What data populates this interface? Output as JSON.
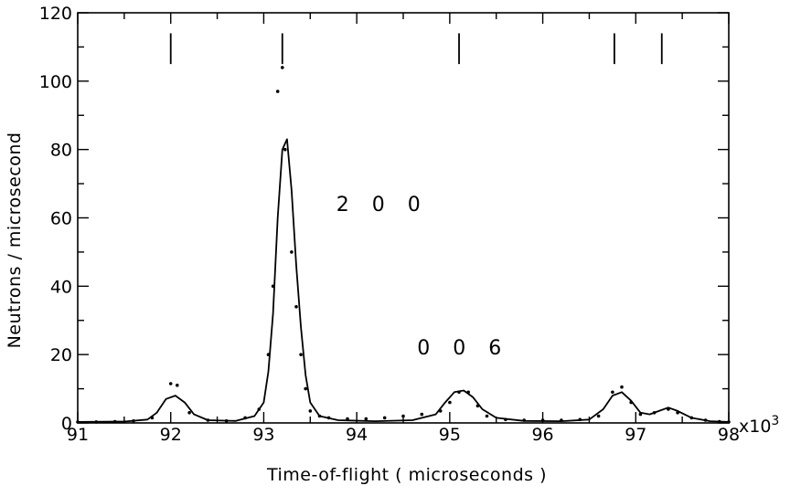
{
  "chart_data": {
    "type": "line",
    "title": "",
    "xlabel": "Time-of-flight ( microseconds )",
    "ylabel": "Neutrons / microsecond",
    "x_multiplier_label": "x10",
    "x_multiplier_exp": "3",
    "xlim": [
      91,
      98
    ],
    "ylim": [
      0,
      120
    ],
    "x_ticks": [
      91,
      92,
      93,
      94,
      95,
      96,
      97,
      98
    ],
    "y_ticks": [
      0,
      20,
      40,
      60,
      80,
      100,
      120
    ],
    "x_tick_labels": [
      "91",
      "92",
      "93",
      "94",
      "95",
      "96",
      "97",
      "98"
    ],
    "y_tick_labels": [
      "0",
      "20",
      "40",
      "60",
      "80",
      "100",
      "120"
    ],
    "grid": false,
    "legend": "none",
    "reflection_markers": [
      92.0,
      93.2,
      95.1,
      96.77,
      97.28
    ],
    "annotations": [
      {
        "text": "2 0 0",
        "x": 93.78,
        "y": 62
      },
      {
        "text": "0 0 6",
        "x": 94.65,
        "y": 20
      }
    ],
    "series": [
      {
        "style": "points",
        "x": [
          91.0,
          91.2,
          91.4,
          91.6,
          91.8,
          92.0,
          92.07,
          92.2,
          92.4,
          92.6,
          92.8,
          92.95,
          93.05,
          93.1,
          93.15,
          93.2,
          93.23,
          93.3,
          93.35,
          93.4,
          93.45,
          93.5,
          93.6,
          93.7,
          93.9,
          94.1,
          94.3,
          94.5,
          94.7,
          94.9,
          95.0,
          95.1,
          95.2,
          95.3,
          95.4,
          95.6,
          95.8,
          96.0,
          96.2,
          96.4,
          96.6,
          96.75,
          96.85,
          96.95,
          97.05,
          97.2,
          97.35,
          97.45,
          97.6,
          97.75,
          97.9,
          98.0
        ],
        "y": [
          0.3,
          0.3,
          0.4,
          0.6,
          1.5,
          11.5,
          11.0,
          3.0,
          0.8,
          0.6,
          1.5,
          4.0,
          20.0,
          40.0,
          97.0,
          104.0,
          80.0,
          50.0,
          34.0,
          20.0,
          10.0,
          3.5,
          2.0,
          1.5,
          1.2,
          1.2,
          1.5,
          2.0,
          2.5,
          3.5,
          6.0,
          9.0,
          9.0,
          5.0,
          2.0,
          1.0,
          0.8,
          0.8,
          0.8,
          1.0,
          2.0,
          9.0,
          10.5,
          6.0,
          2.5,
          3.0,
          4.0,
          3.0,
          1.5,
          0.8,
          0.4,
          0.3
        ]
      },
      {
        "style": "line",
        "x": [
          91.0,
          91.5,
          91.75,
          91.85,
          91.95,
          92.05,
          92.15,
          92.25,
          92.4,
          92.7,
          92.9,
          93.0,
          93.05,
          93.1,
          93.15,
          93.2,
          93.25,
          93.3,
          93.35,
          93.4,
          93.45,
          93.5,
          93.6,
          93.8,
          94.2,
          94.6,
          94.85,
          94.95,
          95.05,
          95.15,
          95.25,
          95.35,
          95.5,
          95.8,
          96.2,
          96.5,
          96.65,
          96.75,
          96.85,
          96.95,
          97.05,
          97.15,
          97.25,
          97.35,
          97.45,
          97.6,
          97.8,
          98.0
        ],
        "y": [
          0.3,
          0.4,
          1.0,
          3.0,
          7.0,
          8.0,
          6.0,
          2.5,
          0.8,
          0.6,
          2.0,
          6.0,
          15.0,
          32.0,
          60.0,
          80.0,
          83.0,
          68.0,
          46.0,
          28.0,
          14.0,
          6.0,
          2.0,
          0.8,
          0.5,
          0.8,
          2.5,
          6.0,
          9.0,
          9.5,
          7.5,
          4.0,
          1.5,
          0.6,
          0.5,
          1.0,
          4.0,
          8.0,
          9.0,
          6.5,
          3.0,
          2.5,
          3.5,
          4.5,
          3.5,
          1.5,
          0.5,
          0.3
        ]
      }
    ]
  }
}
